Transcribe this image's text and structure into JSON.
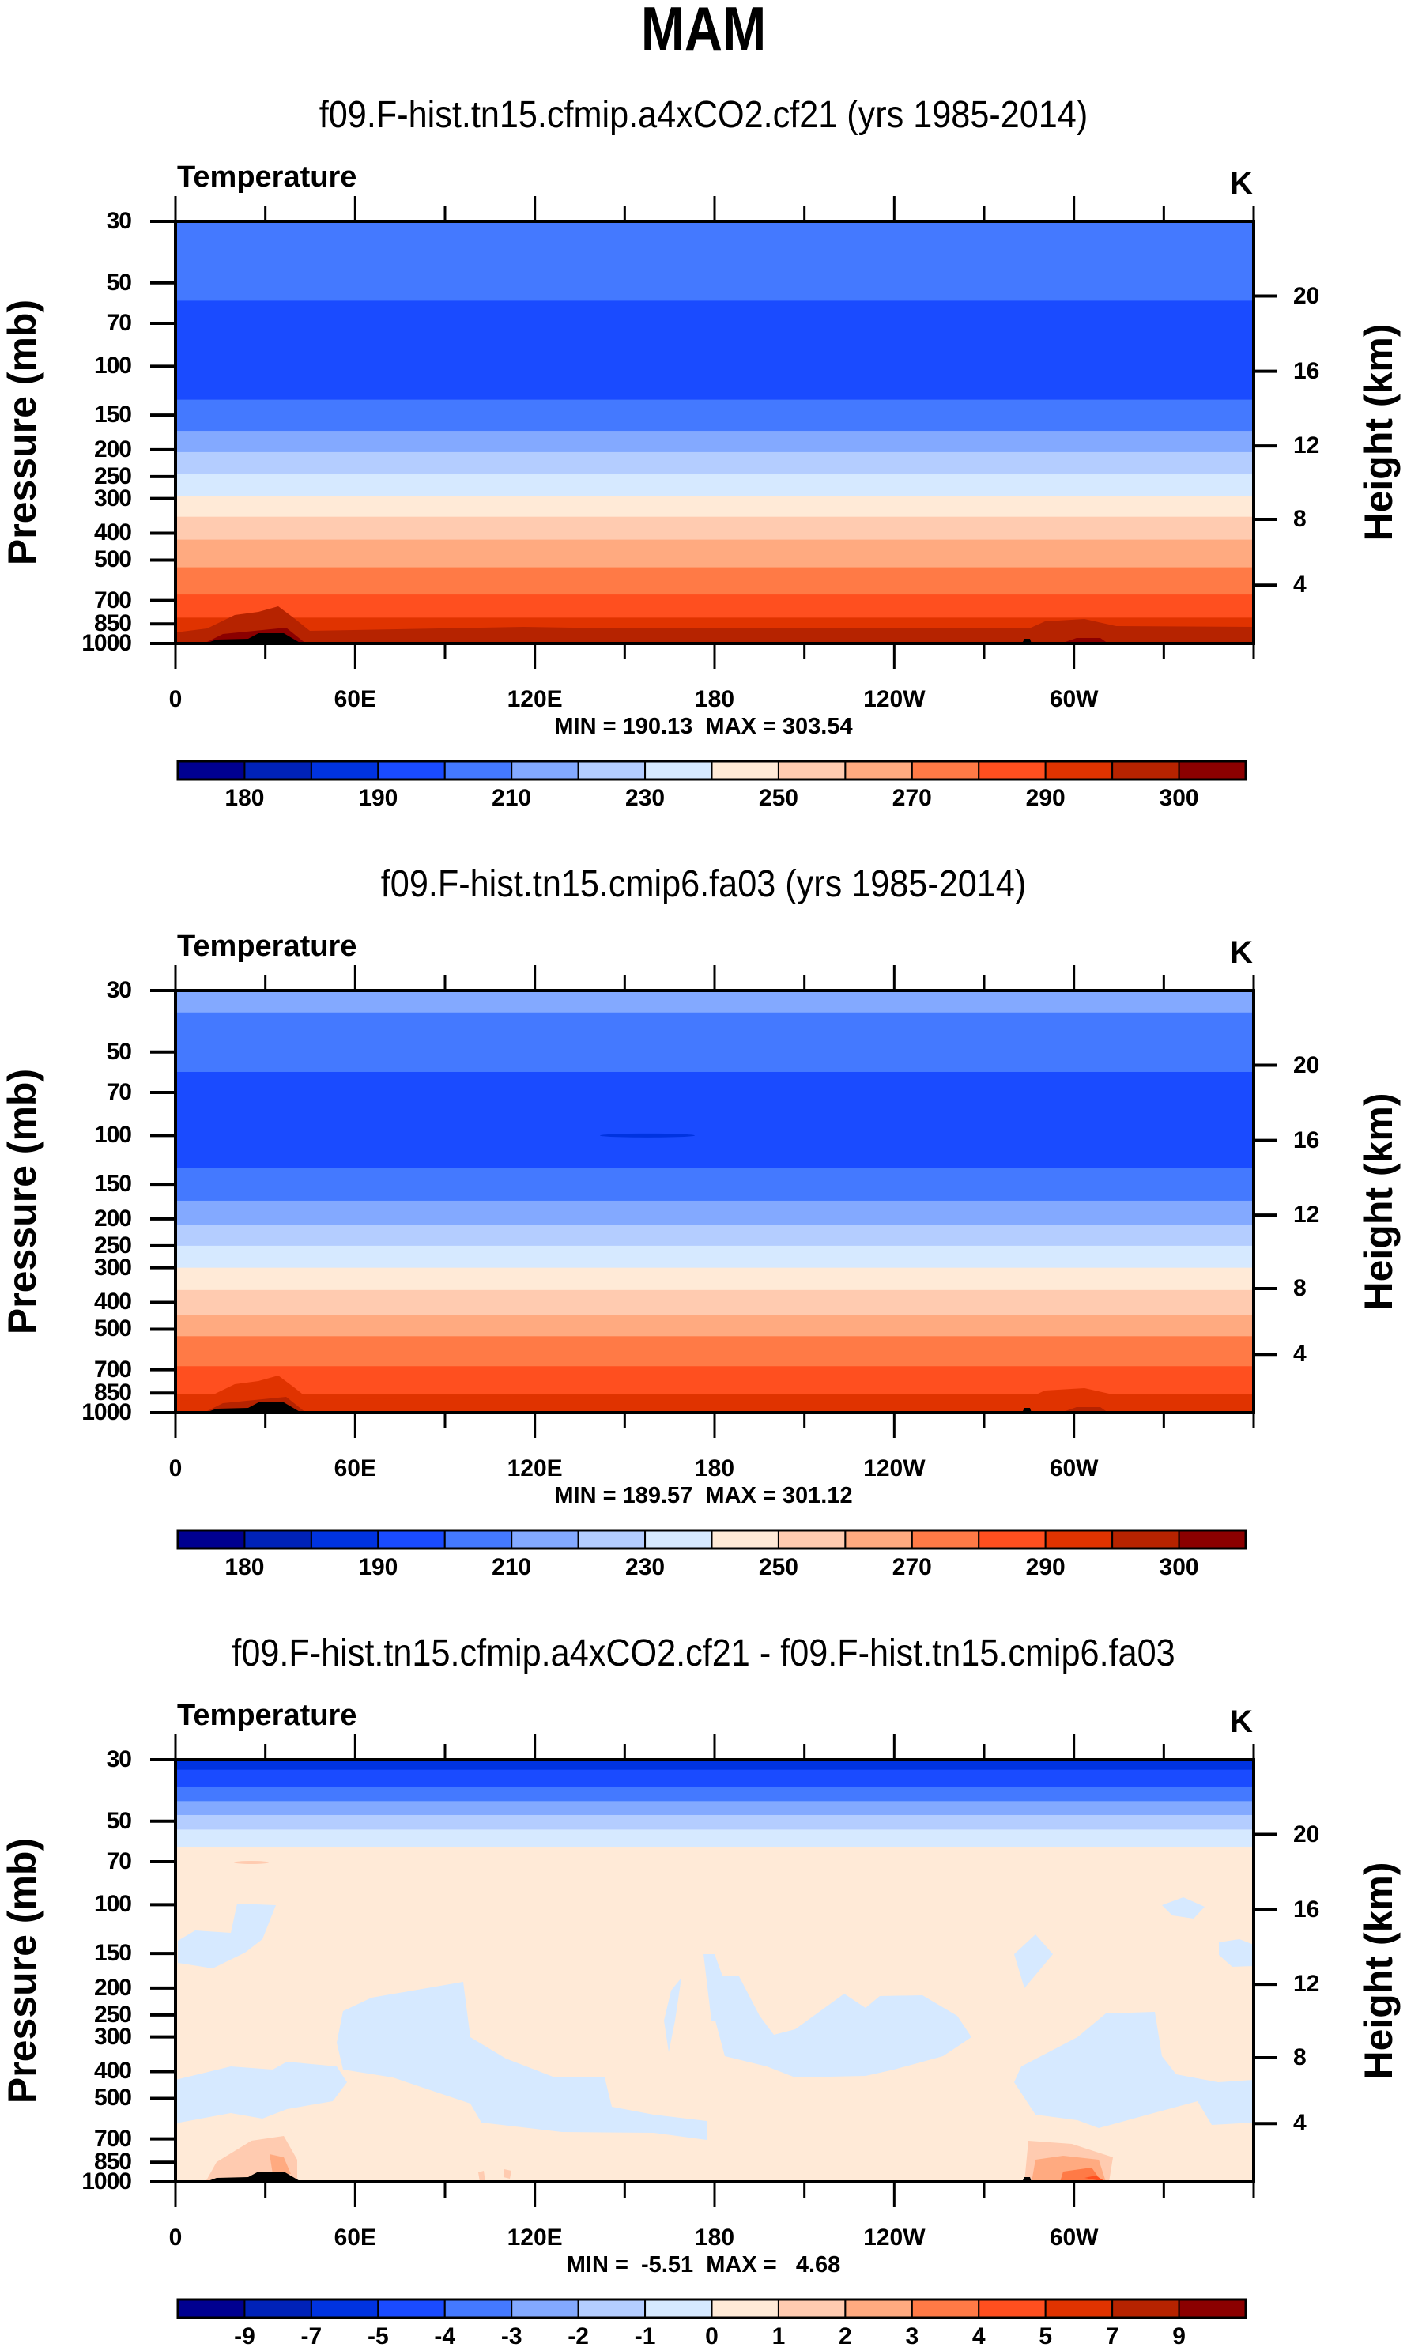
{
  "title": "MAM",
  "colorbar_colors": [
    "#000090",
    "#0022b8",
    "#0033e0",
    "#1a4bff",
    "#4479ff",
    "#83a9ff",
    "#b4cdff",
    "#d6e9ff",
    "#ffead7",
    "#ffcbb0",
    "#ffaa80",
    "#ff7a46",
    "#ff4f1f",
    "#e03300",
    "#b62300",
    "#8b0000"
  ],
  "panels": [
    {
      "subtitle": "f09.F-hist.tn15.cfmip.a4xCO2.cf21 (yrs 1985-2014)",
      "left_title": "Temperature",
      "units": "K",
      "minmax": "MIN = 190.13  MAX = 303.54",
      "colorbar_labels": [
        {
          "boundary": 1,
          "label": "180"
        },
        {
          "boundary": 3,
          "label": "190"
        },
        {
          "boundary": 5,
          "label": "210"
        },
        {
          "boundary": 7,
          "label": "230"
        },
        {
          "boundary": 9,
          "label": "250"
        },
        {
          "boundary": 11,
          "label": "270"
        },
        {
          "boundary": 13,
          "label": "290"
        },
        {
          "boundary": 15,
          "label": "300"
        }
      ]
    },
    {
      "subtitle": "f09.F-hist.tn15.cmip6.fa03 (yrs 1985-2014)",
      "left_title": "Temperature",
      "units": "K",
      "minmax": "MIN = 189.57  MAX = 301.12",
      "colorbar_labels": [
        {
          "boundary": 1,
          "label": "180"
        },
        {
          "boundary": 3,
          "label": "190"
        },
        {
          "boundary": 5,
          "label": "210"
        },
        {
          "boundary": 7,
          "label": "230"
        },
        {
          "boundary": 9,
          "label": "250"
        },
        {
          "boundary": 11,
          "label": "270"
        },
        {
          "boundary": 13,
          "label": "290"
        },
        {
          "boundary": 15,
          "label": "300"
        }
      ]
    },
    {
      "subtitle": "f09.F-hist.tn15.cfmip.a4xCO2.cf21 - f09.F-hist.tn15.cmip6.fa03",
      "left_title": "Temperature",
      "units": "K",
      "minmax": "MIN =  -5.51  MAX =   4.68",
      "colorbar_labels": [
        {
          "boundary": 1,
          "label": "-9"
        },
        {
          "boundary": 2,
          "label": "-7"
        },
        {
          "boundary": 3,
          "label": "-5"
        },
        {
          "boundary": 4,
          "label": "-4"
        },
        {
          "boundary": 5,
          "label": "-3"
        },
        {
          "boundary": 6,
          "label": "-2"
        },
        {
          "boundary": 7,
          "label": "-1"
        },
        {
          "boundary": 8,
          "label": "0"
        },
        {
          "boundary": 9,
          "label": "1"
        },
        {
          "boundary": 10,
          "label": "2"
        },
        {
          "boundary": 11,
          "label": "3"
        },
        {
          "boundary": 12,
          "label": "4"
        },
        {
          "boundary": 13,
          "label": "5"
        },
        {
          "boundary": 14,
          "label": "7"
        },
        {
          "boundary": 15,
          "label": "9"
        }
      ]
    }
  ],
  "chart_data": [
    {
      "type": "heatmap",
      "title": "f09.F-hist.tn15.cfmip.a4xCO2.cf21 (yrs 1985-2014)",
      "xlabel": "",
      "ylabel": "Pressure (mb)",
      "y2label": "Height (km)",
      "xlim": [
        0,
        360
      ],
      "ylim": [
        1000,
        30
      ],
      "yscale": "log",
      "x_ticks": [
        "0",
        "60E",
        "120E",
        "180",
        "120W",
        "60W"
      ],
      "y_ticks": [
        "30",
        "50",
        "70",
        "100",
        "150",
        "200",
        "250",
        "300",
        "400",
        "500",
        "700",
        "850",
        "1000"
      ],
      "y2_ticks": [
        "20",
        "16",
        "12",
        "8",
        "4"
      ],
      "bands": [
        {
          "p_top": 30,
          "p_bottom": 58,
          "color": "#4479ff"
        },
        {
          "p_top": 58,
          "p_bottom": 132,
          "color": "#1a4bff"
        },
        {
          "p_top": 132,
          "p_bottom": 171,
          "color": "#4479ff"
        },
        {
          "p_top": 171,
          "p_bottom": 204,
          "color": "#83a9ff"
        },
        {
          "p_top": 204,
          "p_bottom": 245,
          "color": "#b4cdff"
        },
        {
          "p_top": 245,
          "p_bottom": 293,
          "color": "#d6e9ff"
        },
        {
          "p_top": 293,
          "p_bottom": 349,
          "color": "#ffead7"
        },
        {
          "p_top": 349,
          "p_bottom": 422,
          "color": "#ffcbb0"
        },
        {
          "p_top": 422,
          "p_bottom": 531,
          "color": "#ffaa80"
        },
        {
          "p_top": 531,
          "p_bottom": 666,
          "color": "#ff7a46"
        },
        {
          "p_top": 666,
          "p_bottom": 807,
          "color": "#ff4f1f"
        },
        {
          "p_top": 807,
          "p_bottom": 931,
          "color": "#e03300"
        },
        {
          "p_top": 931,
          "p_bottom": 1000,
          "color": "#b62300"
        }
      ]
    },
    {
      "type": "heatmap",
      "title": "f09.F-hist.tn15.cmip6.fa03 (yrs 1985-2014)",
      "xlabel": "",
      "ylabel": "Pressure (mb)",
      "y2label": "Height (km)",
      "xlim": [
        0,
        360
      ],
      "ylim": [
        1000,
        30
      ],
      "yscale": "log",
      "x_ticks": [
        "0",
        "60E",
        "120E",
        "180",
        "120W",
        "60W"
      ],
      "y_ticks": [
        "30",
        "50",
        "70",
        "100",
        "150",
        "200",
        "250",
        "300",
        "400",
        "500",
        "700",
        "850",
        "1000"
      ],
      "y2_ticks": [
        "20",
        "16",
        "12",
        "8",
        "4"
      ],
      "bands": [
        {
          "p_top": 30,
          "p_bottom": 36,
          "color": "#83a9ff"
        },
        {
          "p_top": 36,
          "p_bottom": 59,
          "color": "#4479ff"
        },
        {
          "p_top": 59,
          "p_bottom": 131,
          "color": "#1a4bff"
        },
        {
          "p_top": 131,
          "p_bottom": 172,
          "color": "#4479ff"
        },
        {
          "p_top": 172,
          "p_bottom": 210,
          "color": "#83a9ff"
        },
        {
          "p_top": 210,
          "p_bottom": 250,
          "color": "#b4cdff"
        },
        {
          "p_top": 250,
          "p_bottom": 300,
          "color": "#d6e9ff"
        },
        {
          "p_top": 300,
          "p_bottom": 361,
          "color": "#ffead7"
        },
        {
          "p_top": 361,
          "p_bottom": 445,
          "color": "#ffcbb0"
        },
        {
          "p_top": 445,
          "p_bottom": 530,
          "color": "#ffaa80"
        },
        {
          "p_top": 530,
          "p_bottom": 680,
          "color": "#ff7a46"
        },
        {
          "p_top": 680,
          "p_bottom": 860,
          "color": "#ff4f1f"
        },
        {
          "p_top": 860,
          "p_bottom": 1000,
          "color": "#e03300"
        }
      ]
    },
    {
      "type": "heatmap",
      "title": "f09.F-hist.tn15.cfmip.a4xCO2.cf21 - f09.F-hist.tn15.cmip6.fa03",
      "xlabel": "",
      "ylabel": "Pressure (mb)",
      "y2label": "Height (km)",
      "xlim": [
        0,
        360
      ],
      "ylim": [
        1000,
        30
      ],
      "yscale": "log",
      "x_ticks": [
        "0",
        "60E",
        "120E",
        "180",
        "120W",
        "60W"
      ],
      "y_ticks": [
        "30",
        "50",
        "70",
        "100",
        "150",
        "200",
        "250",
        "300",
        "400",
        "500",
        "700",
        "850",
        "1000"
      ],
      "y2_ticks": [
        "20",
        "16",
        "12",
        "8",
        "4"
      ],
      "bands": [
        {
          "p_top": 30,
          "p_bottom": 32.6,
          "color": "#0033e0"
        },
        {
          "p_top": 32.6,
          "p_bottom": 37.5,
          "color": "#1a4bff"
        },
        {
          "p_top": 37.5,
          "p_bottom": 42.3,
          "color": "#4479ff"
        },
        {
          "p_top": 42.3,
          "p_bottom": 47.5,
          "color": "#83a9ff"
        },
        {
          "p_top": 47.5,
          "p_bottom": 53.6,
          "color": "#b4cdff"
        },
        {
          "p_top": 53.6,
          "p_bottom": 62.2,
          "color": "#d6e9ff"
        },
        {
          "p_top": 62.2,
          "p_bottom": 1000,
          "color": "#ffead7"
        }
      ]
    }
  ]
}
